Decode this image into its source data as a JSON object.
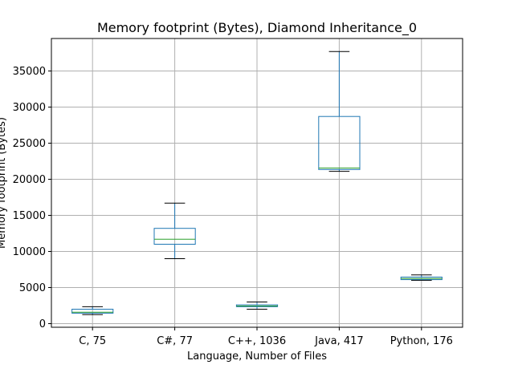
{
  "chart_data": {
    "type": "box",
    "title": "Memory footprint (Bytes), Diamond Inheritance_0",
    "xlabel": "Language, Number of Files",
    "ylabel": "Memory footprint (Bytes)",
    "ylim": [
      -500,
      39500
    ],
    "yticks": [
      0,
      5000,
      10000,
      15000,
      20000,
      25000,
      30000,
      35000
    ],
    "grid": true,
    "categories": [
      "C, 75",
      "C#, 77",
      "C++, 1036",
      "Java, 417",
      "Python, 176"
    ],
    "boxes": [
      {
        "name": "C, 75",
        "whisker_low": 1250,
        "q1": 1450,
        "median": 1580,
        "q3": 2000,
        "whisker_high": 2350
      },
      {
        "name": "C#, 77",
        "whisker_low": 9000,
        "q1": 11000,
        "median": 11700,
        "q3": 13200,
        "whisker_high": 16700
      },
      {
        "name": "C++, 1036",
        "whisker_low": 2000,
        "q1": 2350,
        "median": 2450,
        "q3": 2600,
        "whisker_high": 3000
      },
      {
        "name": "Java, 417",
        "whisker_low": 21100,
        "q1": 21350,
        "median": 21550,
        "q3": 28700,
        "whisker_high": 37700
      },
      {
        "name": "Python, 176",
        "whisker_low": 6000,
        "q1": 6100,
        "median": 6250,
        "q3": 6450,
        "whisker_high": 6750
      }
    ],
    "colors": {
      "box": "#1f77b4",
      "median": "#2ca02c",
      "whisker_cap": "#000000",
      "grid": "#b0b0b0"
    }
  }
}
